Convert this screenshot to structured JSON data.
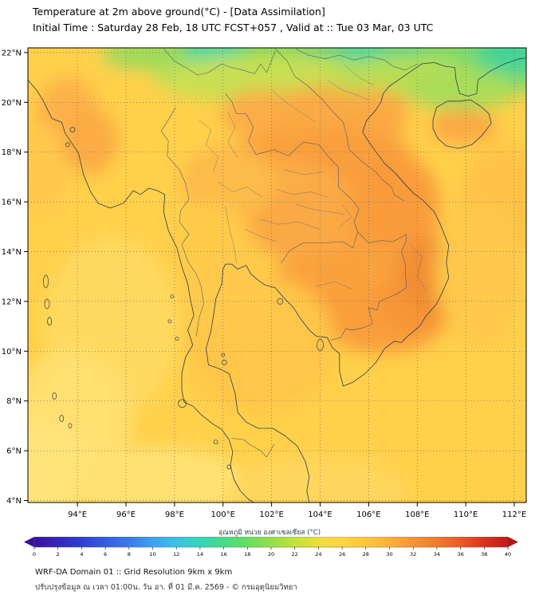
{
  "header": {
    "title": "Temperature at 2m above ground(°C) - [Data Assimilation]",
    "subtitle": "Initial Time : Saturday 28 Feb, 18 UTC FCST+057 , Valid at :: Tue 03 Mar, 03 UTC"
  },
  "map": {
    "lat_ticks": [
      {
        "v": 22,
        "t": "22°N"
      },
      {
        "v": 20,
        "t": "20°N"
      },
      {
        "v": 18,
        "t": "18°N"
      },
      {
        "v": 16,
        "t": "16°N"
      },
      {
        "v": 14,
        "t": "14°N"
      },
      {
        "v": 12,
        "t": "12°N"
      },
      {
        "v": 10,
        "t": "10°N"
      },
      {
        "v": 8,
        "t": "8°N"
      },
      {
        "v": 6,
        "t": "6°N"
      },
      {
        "v": 4,
        "t": "4°N"
      }
    ],
    "lon_ticks": [
      {
        "v": 94,
        "t": "94°E"
      },
      {
        "v": 96,
        "t": "96°E"
      },
      {
        "v": 98,
        "t": "98°E"
      },
      {
        "v": 100,
        "t": "100°E"
      },
      {
        "v": 102,
        "t": "102°E"
      },
      {
        "v": 104,
        "t": "104°E"
      },
      {
        "v": 106,
        "t": "106°E"
      },
      {
        "v": 108,
        "t": "108°E"
      },
      {
        "v": 110,
        "t": "110°E"
      },
      {
        "v": 112,
        "t": "112°E"
      }
    ]
  },
  "colorbar": {
    "label": "อุณหภูมิ หน่วย องศาเซลเซียส (°C)",
    "unit": "°C",
    "min": 0,
    "max": 40,
    "ticks": [
      0,
      2,
      4,
      6,
      8,
      10,
      12,
      14,
      16,
      18,
      20,
      22,
      24,
      26,
      28,
      30,
      32,
      34,
      36,
      38,
      40
    ],
    "gradient_stops": [
      {
        "v": 0,
        "c": "#3B0F9E"
      },
      {
        "v": 4,
        "c": "#2F3FD3"
      },
      {
        "v": 8,
        "c": "#3A7BEA"
      },
      {
        "v": 10,
        "c": "#3FA2EE"
      },
      {
        "v": 12,
        "c": "#3AC4E4"
      },
      {
        "v": 14,
        "c": "#35D6B8"
      },
      {
        "v": 16,
        "c": "#46DB86"
      },
      {
        "v": 18,
        "c": "#66DD5C"
      },
      {
        "v": 20,
        "c": "#95E04A"
      },
      {
        "v": 22,
        "c": "#C3E13C"
      },
      {
        "v": 24,
        "c": "#ECDF38"
      },
      {
        "v": 26,
        "c": "#FFD441"
      },
      {
        "v": 28,
        "c": "#FFC63E"
      },
      {
        "v": 30,
        "c": "#FFB13A"
      },
      {
        "v": 32,
        "c": "#FA9434"
      },
      {
        "v": 34,
        "c": "#F47A2D"
      },
      {
        "v": 36,
        "c": "#EC5826"
      },
      {
        "v": 38,
        "c": "#DC3220"
      },
      {
        "v": 40,
        "c": "#C01A1A"
      }
    ],
    "under_color": "#3B0F9E",
    "over_color": "#B01717"
  },
  "footer": {
    "line1": "WRF-DA Domain 01 :: Grid Resolution 9km x 9km",
    "line2": "ปรับปรุงข้อมูล ณ เวลา 01:00น. วัน อา. ที่ 01 มี.ค. 2569 - © กรมอุตุนิยมวิทยา"
  },
  "chart_data": {
    "type": "heatmap",
    "title": "Temperature at 2m above ground(°C) - [Data Assimilation]",
    "subtitle": "Initial Time : Saturday 28 Feb, 18 UTC FCST+057 , Valid at :: Tue 03 Mar, 03 UTC",
    "x": {
      "label": "Longitude",
      "ticks": [
        "94°E",
        "96°E",
        "98°E",
        "100°E",
        "102°E",
        "104°E",
        "106°E",
        "108°E",
        "110°E",
        "112°E"
      ],
      "range_deg_e": [
        92.0,
        112.5
      ]
    },
    "y": {
      "label": "Latitude",
      "ticks": [
        "22°N",
        "20°N",
        "18°N",
        "16°N",
        "14°N",
        "12°N",
        "10°N",
        "8°N",
        "6°N",
        "4°N"
      ],
      "range_deg_n": [
        3.9,
        22.2
      ]
    },
    "colorbar": {
      "label": "อุณหภูมิ หน่วย องศาเซลเซียส (°C)",
      "min": 0,
      "max": 40,
      "tick_step": 2,
      "unit": "°C",
      "position": "bottom"
    },
    "grid": true,
    "field_estimates": [
      {
        "region": "Far north strip 21-22°N (N. Vietnam / S. China / Shan highlands)",
        "temp_c": [
          20,
          26
        ]
      },
      {
        "region": "Coolest teal pockets along 22°N near 99°E and 104-108°E",
        "temp_c": [
          18,
          22
        ]
      },
      {
        "region": "NW Myanmar interior 92-95°E, 16-20°N",
        "temp_c": [
          30,
          33
        ]
      },
      {
        "region": "Central/S. Laos and N.-central Vietnam 102-107°E, 14-18°N",
        "temp_c": [
          32,
          34
        ]
      },
      {
        "region": "NE Thailand (Isaan plateau)",
        "temp_c": [
          30,
          33
        ]
      },
      {
        "region": "Cambodia and far S. Vietnam 10-13°N",
        "temp_c": [
          32,
          34
        ]
      },
      {
        "region": "S. Vietnam highland hot spots ~108-109°E, 11-13°N",
        "temp_c": [
          34,
          35
        ]
      },
      {
        "region": "Central Thailand plains and Gulf of Thailand",
        "temp_c": [
          28,
          31
        ]
      },
      {
        "region": "Andaman Sea west of the peninsula",
        "temp_c": [
          27,
          29
        ]
      },
      {
        "region": "Southern edge 4-6°N",
        "temp_c": [
          26,
          28
        ]
      }
    ]
  }
}
